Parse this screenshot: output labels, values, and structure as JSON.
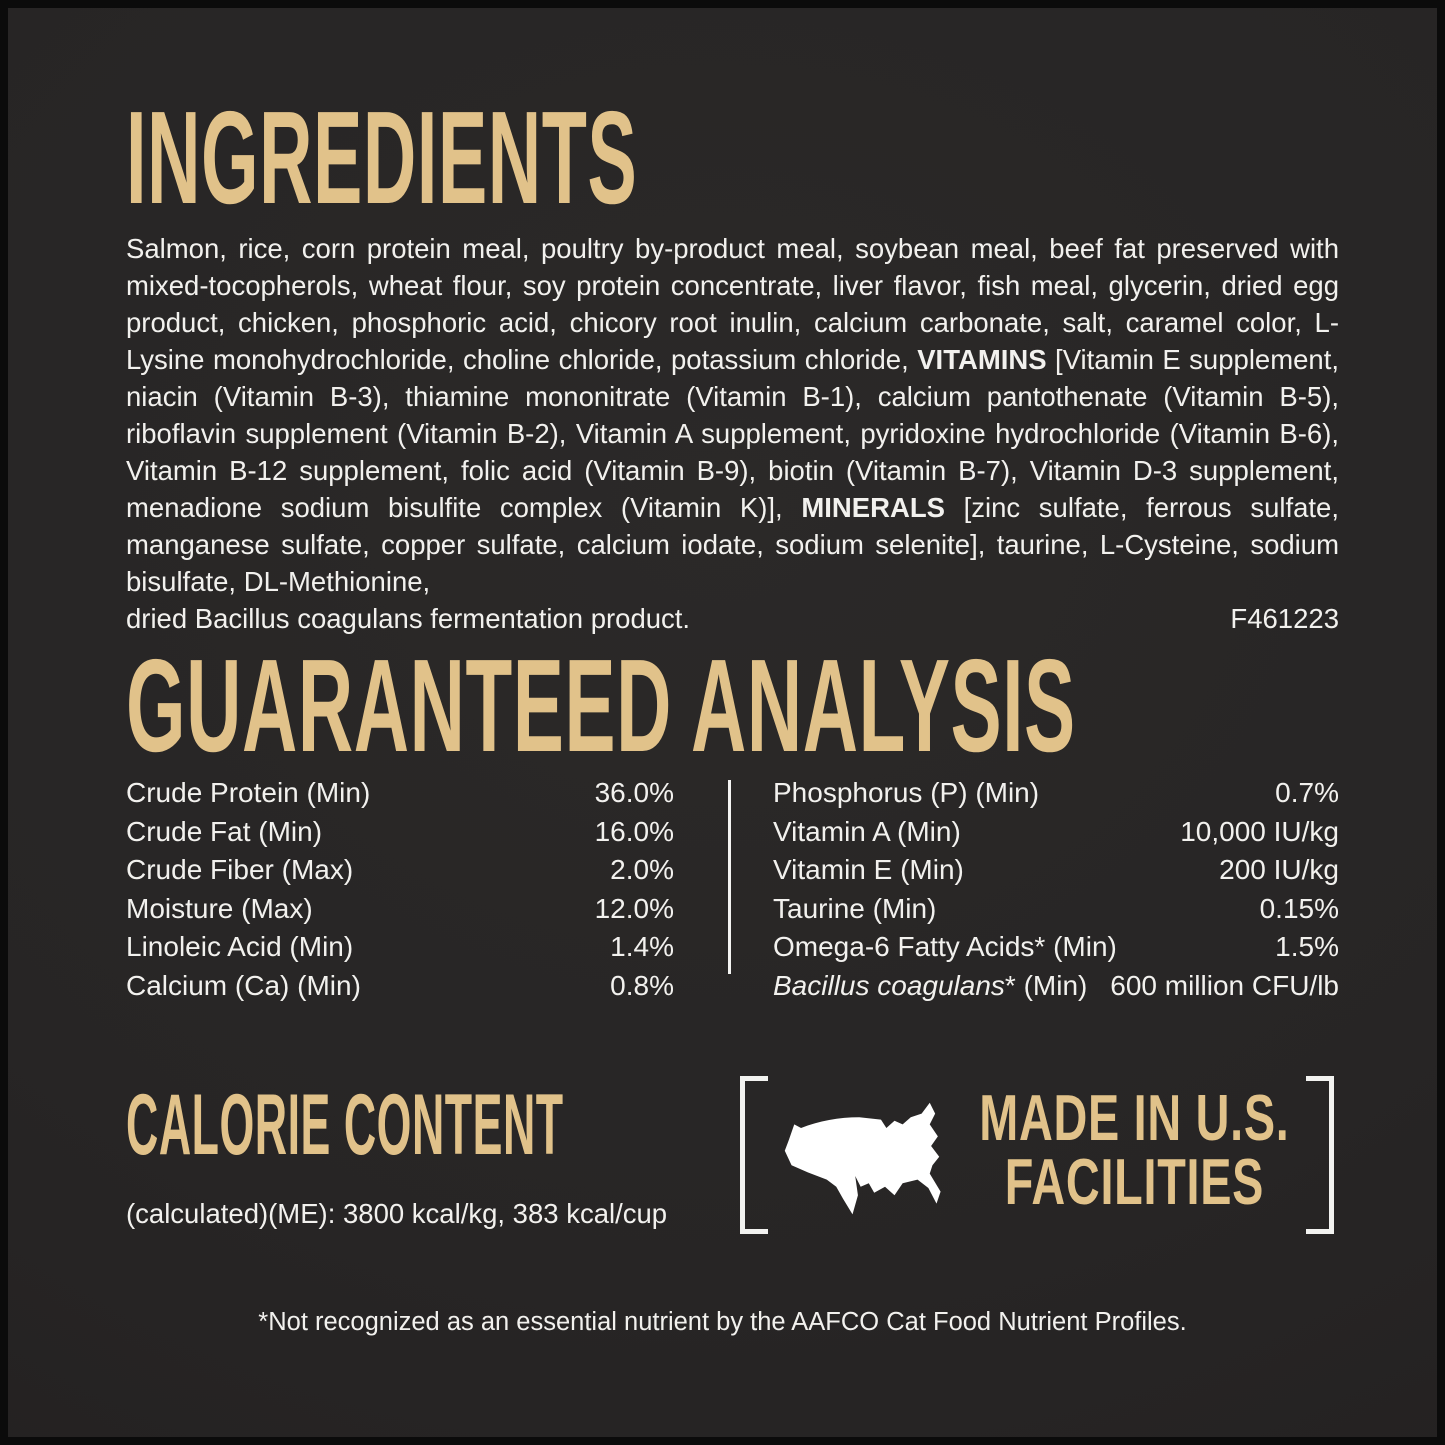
{
  "colors": {
    "background_panel": "#272525",
    "outer_border": "#0b0b0b",
    "accent_gold": "#e1c28a",
    "text_white": "#f2f1ee"
  },
  "ingredients": {
    "heading": "INGREDIENTS",
    "body_segments": [
      {
        "text": "Salmon, rice, corn protein meal, poultry by-product meal, soybean meal, beef fat preserved with mixed-tocopherols, wheat flour, soy protein concentrate, liver flavor, fish meal, glycerin, dried egg product, chicken, phosphoric acid, chicory root inulin, calcium carbonate, salt, caramel color, L-Lysine monohydrochloride, choline chloride, potassium chloride, ",
        "bold": false
      },
      {
        "text": "VITAMINS",
        "bold": true
      },
      {
        "text": " [Vitamin E supplement, niacin (Vitamin B-3), thiamine mononitrate (Vitamin B-1), calcium pantothenate (Vitamin B-5), riboflavin supplement (Vitamin B-2), Vitamin A supplement, pyridoxine hydrochloride (Vitamin B-6), Vitamin B-12 supplement, folic acid (Vitamin B-9), biotin (Vitamin B-7), Vitamin D-3 supplement, menadione sodium bisulfite complex (Vitamin K)], ",
        "bold": false
      },
      {
        "text": "MINERALS",
        "bold": true
      },
      {
        "text": " [zinc sulfate, ferrous sulfate, manganese sulfate, copper sulfate, calcium iodate, sodium selenite], taurine, L-Cysteine, sodium bisulfate, DL-Methionine,",
        "bold": false
      }
    ],
    "last_line": "dried Bacillus coagulans fermentation product.",
    "code": "F461223"
  },
  "guaranteed_analysis": {
    "heading": "GUARANTEED ANALYSIS",
    "left_rows": [
      {
        "label": "Crude Protein (Min)",
        "value": "36.0%"
      },
      {
        "label": "Crude Fat (Min)",
        "value": "16.0%"
      },
      {
        "label": "Crude Fiber (Max)",
        "value": "2.0%"
      },
      {
        "label": "Moisture (Max)",
        "value": "12.0%"
      },
      {
        "label": "Linoleic Acid (Min)",
        "value": "1.4%"
      },
      {
        "label": "Calcium (Ca) (Min)",
        "value": "0.8%"
      }
    ],
    "right_rows": [
      {
        "label": "Phosphorus (P) (Min)",
        "value": "0.7%"
      },
      {
        "label": "Vitamin A (Min)",
        "value": "10,000 IU/kg"
      },
      {
        "label": "Vitamin E (Min)",
        "value": "200 IU/kg"
      },
      {
        "label": "Taurine (Min)",
        "value": "0.15%"
      },
      {
        "label": "Omega-6 Fatty Acids* (Min)",
        "value": "1.5%"
      },
      {
        "label_segments": [
          {
            "text": "Bacillus coagulans",
            "italic": true
          },
          {
            "text": "* (Min)",
            "italic": false
          }
        ],
        "value": "600 million CFU/lb"
      }
    ]
  },
  "calorie_content": {
    "heading": "CALORIE CONTENT",
    "text": "(calculated)(ME): 3800 kcal/kg, 383 kcal/cup"
  },
  "made_in": {
    "line1": "MADE IN U.S.",
    "line2": "FACILITIES",
    "icon": "usa-map-icon"
  },
  "footnote": "*Not recognized as an essential nutrient by the AAFCO Cat Food Nutrient Profiles."
}
